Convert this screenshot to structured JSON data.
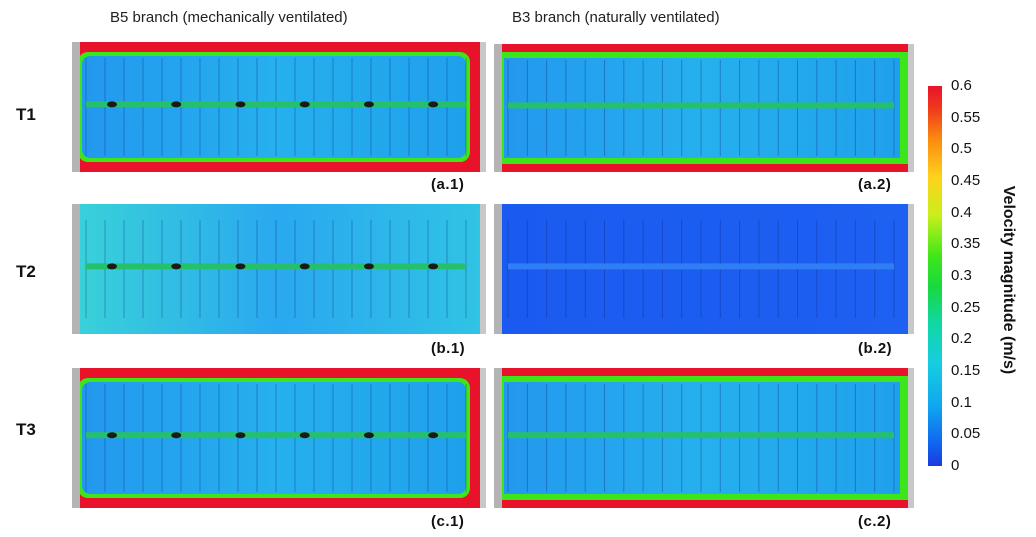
{
  "columns": [
    {
      "title": "B5 branch (mechanically ventilated)"
    },
    {
      "title": "B3 branch (naturally ventilated)"
    }
  ],
  "rows": [
    {
      "label": "T1"
    },
    {
      "label": "T2"
    },
    {
      "label": "T3"
    }
  ],
  "panels": [
    {
      "id": "a1",
      "caption": "(a.1)",
      "pattern": "mech-high"
    },
    {
      "id": "a2",
      "caption": "(a.2)",
      "pattern": "nat-high"
    },
    {
      "id": "b1",
      "caption": "(b.1)",
      "pattern": "mech-low"
    },
    {
      "id": "b2",
      "caption": "(b.2)",
      "pattern": "nat-still"
    },
    {
      "id": "c1",
      "caption": "(c.1)",
      "pattern": "mech-high"
    },
    {
      "id": "c2",
      "caption": "(c.2)",
      "pattern": "nat-high"
    }
  ],
  "colorbar": {
    "label": "Velocity magnitude (m/s)",
    "min": 0,
    "max": 0.6,
    "ticks": [
      "0.6",
      "0.55",
      "0.5",
      "0.45",
      "0.4",
      "0.35",
      "0.3",
      "0.25",
      "0.2",
      "0.15",
      "0.1",
      "0.05",
      "0"
    ],
    "colors": {
      "high": "#e8132a",
      "mid": "#3de61a",
      "low": "#1a3ae0"
    }
  }
}
